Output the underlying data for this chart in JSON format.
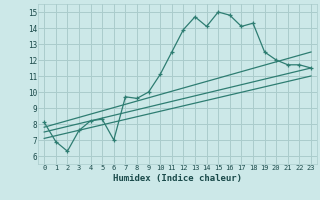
{
  "xlabel": "Humidex (Indice chaleur)",
  "ylabel": "",
  "bg_color": "#cce8e8",
  "grid_color": "#aacccc",
  "line_color": "#2e7d72",
  "xlim": [
    -0.5,
    23.5
  ],
  "ylim": [
    5.5,
    15.5
  ],
  "xticks": [
    0,
    1,
    2,
    3,
    4,
    5,
    6,
    7,
    8,
    9,
    10,
    11,
    12,
    13,
    14,
    15,
    16,
    17,
    18,
    19,
    20,
    21,
    22,
    23
  ],
  "yticks": [
    6,
    7,
    8,
    9,
    10,
    11,
    12,
    13,
    14,
    15
  ],
  "series1_x": [
    0,
    1,
    2,
    3,
    4,
    5,
    6,
    7,
    8,
    9,
    10,
    11,
    12,
    13,
    14,
    15,
    16,
    17,
    18,
    19,
    20,
    21,
    22,
    23
  ],
  "series1_y": [
    8.1,
    6.9,
    6.3,
    7.6,
    8.2,
    8.3,
    7.0,
    9.7,
    9.6,
    10.0,
    11.1,
    12.5,
    13.9,
    14.7,
    14.1,
    15.0,
    14.8,
    14.1,
    14.3,
    12.5,
    12.0,
    11.7,
    11.7,
    11.5
  ],
  "series2_x": [
    0,
    23
  ],
  "series2_y": [
    7.8,
    12.5
  ],
  "series3_x": [
    0,
    23
  ],
  "series3_y": [
    7.5,
    11.5
  ],
  "series4_x": [
    0,
    23
  ],
  "series4_y": [
    7.1,
    11.0
  ]
}
